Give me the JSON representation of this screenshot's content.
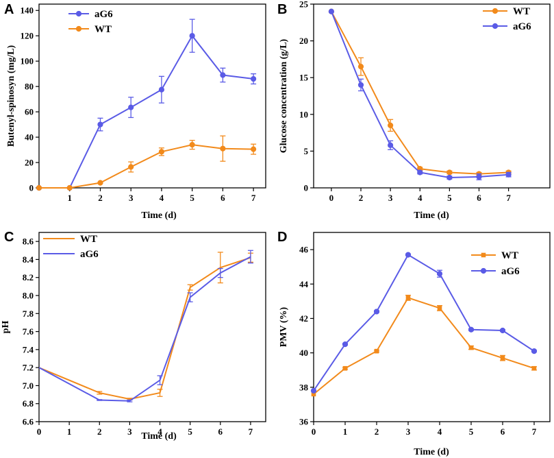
{
  "colors": {
    "orange": "#F28A1B",
    "blue": "#5A5BE6",
    "axis": "#000000"
  },
  "chart_data": [
    {
      "panel": "A",
      "type": "line",
      "xlabel": "Time (d)",
      "ylabel": "Butenyl-spinosyn (mg/L)",
      "xlim": [
        0,
        7.4
      ],
      "ylim": [
        0,
        145
      ],
      "xticks": [
        1,
        2,
        3,
        4,
        5,
        6,
        7
      ],
      "yticks": [
        0,
        20,
        40,
        60,
        80,
        100,
        120,
        140
      ],
      "legend_position": "top-left",
      "series": [
        {
          "name": "aG6",
          "color": "blue",
          "marker": "circle",
          "x": [
            0,
            1,
            2,
            3,
            4,
            5,
            6,
            7
          ],
          "y": [
            0,
            0,
            50,
            63.5,
            77.5,
            120,
            89,
            86
          ],
          "err": [
            0,
            0,
            5,
            8,
            10.5,
            13,
            5.5,
            4
          ]
        },
        {
          "name": "WT",
          "color": "orange",
          "marker": "circle",
          "x": [
            0,
            1,
            2,
            3,
            4,
            5,
            6,
            7
          ],
          "y": [
            0,
            0,
            4,
            16.5,
            28.5,
            34,
            31,
            30.5
          ],
          "err": [
            0,
            0,
            0.5,
            4,
            3,
            3.5,
            10,
            4
          ]
        }
      ]
    },
    {
      "panel": "B",
      "type": "line",
      "xlabel": "Time (d)",
      "ylabel": "Glucose concentration (g/L)",
      "xlim": [
        -0.6,
        7.4
      ],
      "ylim": [
        0,
        25
      ],
      "xticks": [
        0,
        2,
        3,
        4,
        5,
        6,
        7
      ],
      "xtick_positions": [
        0,
        1,
        2,
        3,
        4,
        5,
        6
      ],
      "yticks": [
        0,
        5,
        10,
        15,
        20,
        25
      ],
      "legend_position": "top-right",
      "series": [
        {
          "name": "WT",
          "color": "orange",
          "marker": "circle",
          "x": [
            0,
            2,
            3,
            4,
            5,
            6,
            7
          ],
          "y": [
            24,
            16.5,
            8.5,
            2.6,
            2.1,
            1.9,
            2.1
          ],
          "err": [
            0,
            1.2,
            0.8,
            0.2,
            0.2,
            0.2,
            0.2
          ]
        },
        {
          "name": "aG6",
          "color": "blue",
          "marker": "circle",
          "x": [
            0,
            2,
            3,
            4,
            5,
            6,
            7
          ],
          "y": [
            24,
            14,
            5.8,
            2.1,
            1.4,
            1.5,
            1.8
          ],
          "err": [
            0,
            0.8,
            0.6,
            0.2,
            0.2,
            0.4,
            0.3
          ]
        }
      ]
    },
    {
      "panel": "C",
      "type": "line",
      "xlabel": "Time (d)",
      "ylabel": "pH",
      "xlim": [
        0,
        7.5
      ],
      "ylim": [
        6.6,
        8.7
      ],
      "xticks": [
        0,
        1,
        2,
        3,
        4,
        5,
        6,
        7
      ],
      "yticks": [
        6.6,
        6.8,
        7.0,
        7.2,
        7.4,
        7.6,
        7.8,
        8.0,
        8.2,
        8.4,
        8.6
      ],
      "legend_position": "top-left",
      "series": [
        {
          "name": "WT",
          "color": "orange",
          "marker": "none",
          "x": [
            0,
            2,
            3,
            4,
            5,
            6,
            7
          ],
          "y": [
            7.2,
            6.92,
            6.85,
            6.92,
            8.09,
            8.31,
            8.42
          ],
          "err": [
            0,
            0.015,
            0.01,
            0.04,
            0.03,
            0.17,
            0.05
          ]
        },
        {
          "name": "aG6",
          "color": "blue",
          "marker": "none",
          "x": [
            0,
            2,
            3,
            4,
            5,
            6,
            7
          ],
          "y": [
            7.2,
            6.84,
            6.83,
            7.06,
            7.98,
            8.25,
            8.43
          ],
          "err": [
            0,
            0.005,
            0.01,
            0.05,
            0.05,
            0.05,
            0.07
          ]
        }
      ]
    },
    {
      "panel": "D",
      "type": "line",
      "xlabel": "Time (d)",
      "ylabel": "PMV (%)",
      "xlim": [
        0,
        7.5
      ],
      "ylim": [
        36,
        47
      ],
      "xticks": [
        0,
        1,
        2,
        3,
        4,
        5,
        6,
        7
      ],
      "yticks": [
        36,
        38,
        40,
        42,
        44,
        46
      ],
      "legend_position": "top-right",
      "series": [
        {
          "name": "WT",
          "color": "orange",
          "marker": "square",
          "x": [
            0,
            1,
            2,
            3,
            4,
            5,
            6,
            7
          ],
          "y": [
            37.6,
            39.1,
            40.1,
            43.2,
            42.6,
            40.3,
            39.7,
            39.1
          ],
          "err": [
            0,
            0.05,
            0.05,
            0.15,
            0.15,
            0.1,
            0.15,
            0.1
          ]
        },
        {
          "name": "aG6",
          "color": "blue",
          "marker": "circle",
          "x": [
            0,
            1,
            2,
            3,
            4,
            5,
            6,
            7
          ],
          "y": [
            37.8,
            40.5,
            42.4,
            45.7,
            44.6,
            41.35,
            41.3,
            40.1
          ],
          "err": [
            0,
            0.05,
            0.05,
            0.05,
            0.2,
            0.05,
            0.05,
            0.05
          ]
        }
      ]
    }
  ]
}
